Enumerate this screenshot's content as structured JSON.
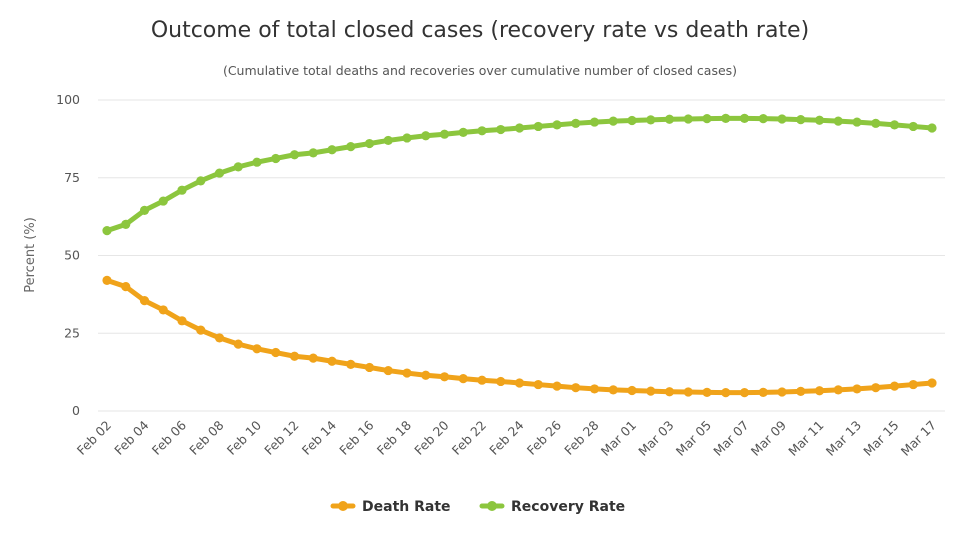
{
  "chart_data": {
    "type": "line",
    "title": "Outcome of total closed cases (recovery rate vs death rate)",
    "subtitle": "(Cumulative total deaths and recoveries over cumulative number of closed cases)",
    "ylabel": "Percent (%)",
    "xlabel": "",
    "ylim": [
      0,
      100
    ],
    "yticks": [
      0,
      25,
      50,
      75,
      100
    ],
    "grid": true,
    "legend_position": "bottom-center",
    "x": [
      "Feb 02",
      "Feb 03",
      "Feb 04",
      "Feb 05",
      "Feb 06",
      "Feb 07",
      "Feb 08",
      "Feb 09",
      "Feb 10",
      "Feb 11",
      "Feb 12",
      "Feb 13",
      "Feb 14",
      "Feb 15",
      "Feb 16",
      "Feb 17",
      "Feb 18",
      "Feb 19",
      "Feb 20",
      "Feb 21",
      "Feb 22",
      "Feb 23",
      "Feb 24",
      "Feb 25",
      "Feb 26",
      "Feb 27",
      "Feb 28",
      "Feb 29",
      "Mar 01",
      "Mar 02",
      "Mar 03",
      "Mar 04",
      "Mar 05",
      "Mar 06",
      "Mar 07",
      "Mar 08",
      "Mar 09",
      "Mar 10",
      "Mar 11",
      "Mar 12",
      "Mar 13",
      "Mar 14",
      "Mar 15",
      "Mar 16",
      "Mar 17"
    ],
    "xtick_labels": [
      "Feb 02",
      "Feb 04",
      "Feb 06",
      "Feb 08",
      "Feb 10",
      "Feb 12",
      "Feb 14",
      "Feb 16",
      "Feb 18",
      "Feb 20",
      "Feb 22",
      "Feb 24",
      "Feb 26",
      "Feb 28",
      "Mar 01",
      "Mar 03",
      "Mar 05",
      "Mar 07",
      "Mar 09",
      "Mar 11",
      "Mar 13",
      "Mar 15",
      "Mar 17"
    ],
    "series": [
      {
        "name": "Death Rate",
        "color": "#f0a31a",
        "values": [
          42,
          40,
          35.5,
          32.5,
          29,
          26,
          23.5,
          21.5,
          20,
          18.8,
          17.6,
          17,
          16,
          15,
          14,
          13,
          12.2,
          11.5,
          11,
          10.4,
          9.9,
          9.5,
          9,
          8.5,
          8,
          7.5,
          7.1,
          6.8,
          6.6,
          6.4,
          6.2,
          6.1,
          6,
          5.9,
          5.9,
          6,
          6.1,
          6.3,
          6.5,
          6.8,
          7.1,
          7.5,
          8,
          8.5,
          9
        ]
      },
      {
        "name": "Recovery Rate",
        "color": "#8cc63e",
        "values": [
          58,
          60,
          64.5,
          67.5,
          71,
          74,
          76.5,
          78.5,
          80,
          81.2,
          82.4,
          83,
          84,
          85,
          86,
          87,
          87.8,
          88.5,
          89,
          89.6,
          90.1,
          90.5,
          91,
          91.5,
          92,
          92.5,
          92.9,
          93.2,
          93.4,
          93.6,
          93.8,
          93.9,
          94,
          94.1,
          94.1,
          94,
          93.9,
          93.7,
          93.5,
          93.2,
          92.9,
          92.5,
          92,
          91.5,
          91
        ]
      }
    ]
  }
}
